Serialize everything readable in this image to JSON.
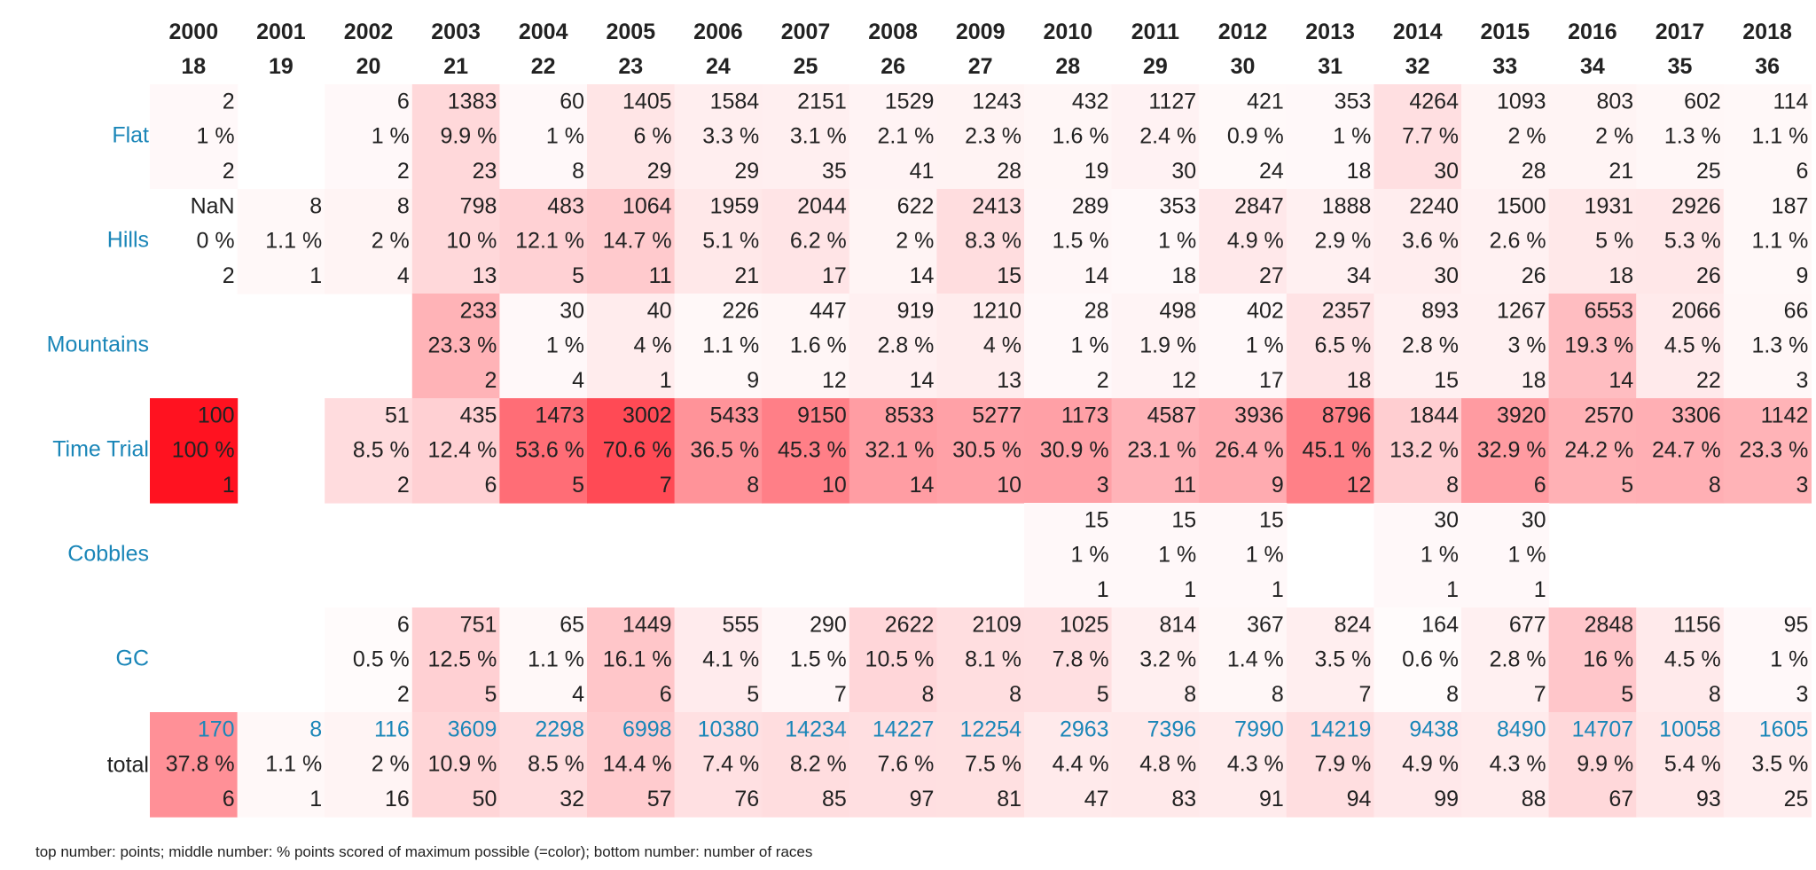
{
  "chart_data": {
    "type": "heatmap",
    "title": "",
    "footnote": "top number: points; middle number: % points scored of maximum possible (=color); bottom number: number of races",
    "columns": [
      {
        "year": "2000",
        "age": "18"
      },
      {
        "year": "2001",
        "age": "19"
      },
      {
        "year": "2002",
        "age": "20"
      },
      {
        "year": "2003",
        "age": "21"
      },
      {
        "year": "2004",
        "age": "22"
      },
      {
        "year": "2005",
        "age": "23"
      },
      {
        "year": "2006",
        "age": "24"
      },
      {
        "year": "2007",
        "age": "25"
      },
      {
        "year": "2008",
        "age": "26"
      },
      {
        "year": "2009",
        "age": "27"
      },
      {
        "year": "2010",
        "age": "28"
      },
      {
        "year": "2011",
        "age": "29"
      },
      {
        "year": "2012",
        "age": "30"
      },
      {
        "year": "2013",
        "age": "31"
      },
      {
        "year": "2014",
        "age": "32"
      },
      {
        "year": "2015",
        "age": "33"
      },
      {
        "year": "2016",
        "age": "34"
      },
      {
        "year": "2017",
        "age": "35"
      },
      {
        "year": "2018",
        "age": "36"
      }
    ],
    "rows": [
      {
        "label": "Flat",
        "points": [
          "2",
          "",
          "6",
          "1383",
          "60",
          "1405",
          "1584",
          "2151",
          "1529",
          "1243",
          "432",
          "1127",
          "421",
          "353",
          "4264",
          "1093",
          "803",
          "602",
          "114"
        ],
        "pct": [
          "1 %",
          "",
          "1 %",
          "9.9 %",
          "1 %",
          "6 %",
          "3.3 %",
          "3.1 %",
          "2.1 %",
          "2.3 %",
          "1.6 %",
          "2.4 %",
          "0.9 %",
          "1 %",
          "7.7 %",
          "2 %",
          "2 %",
          "1.3 %",
          "1.1 %"
        ],
        "races": [
          "2",
          "",
          "2",
          "23",
          "8",
          "29",
          "29",
          "35",
          "41",
          "28",
          "19",
          "30",
          "24",
          "18",
          "30",
          "28",
          "21",
          "25",
          "6"
        ],
        "values": [
          1,
          null,
          1,
          9.9,
          1,
          6,
          3.3,
          3.1,
          2.1,
          2.3,
          1.6,
          2.4,
          0.9,
          1,
          7.7,
          2,
          2,
          1.3,
          1.1
        ]
      },
      {
        "label": "Hills",
        "points": [
          "NaN",
          "8",
          "8",
          "798",
          "483",
          "1064",
          "1959",
          "2044",
          "622",
          "2413",
          "289",
          "353",
          "2847",
          "1888",
          "2240",
          "1500",
          "1931",
          "2926",
          "187"
        ],
        "pct": [
          "0 %",
          "1.1 %",
          "2 %",
          "10 %",
          "12.1 %",
          "14.7 %",
          "5.1 %",
          "6.2 %",
          "2 %",
          "8.3 %",
          "1.5 %",
          "1 %",
          "4.9 %",
          "2.9 %",
          "3.6 %",
          "2.6 %",
          "5 %",
          "5.3 %",
          "1.1 %"
        ],
        "races": [
          "2",
          "1",
          "4",
          "13",
          "5",
          "11",
          "21",
          "17",
          "14",
          "15",
          "14",
          "18",
          "27",
          "34",
          "30",
          "26",
          "18",
          "26",
          "9"
        ],
        "values": [
          0,
          1.1,
          2,
          10,
          12.1,
          14.7,
          5.1,
          6.2,
          2,
          8.3,
          1.5,
          1,
          4.9,
          2.9,
          3.6,
          2.6,
          5,
          5.3,
          1.1
        ]
      },
      {
        "label": "Mountains",
        "points": [
          "",
          "",
          "",
          "233",
          "30",
          "40",
          "226",
          "447",
          "919",
          "1210",
          "28",
          "498",
          "402",
          "2357",
          "893",
          "1267",
          "6553",
          "2066",
          "66"
        ],
        "pct": [
          "",
          "",
          "",
          "23.3 %",
          "1 %",
          "4 %",
          "1.1 %",
          "1.6 %",
          "2.8 %",
          "4 %",
          "1 %",
          "1.9 %",
          "1 %",
          "6.5 %",
          "2.8 %",
          "3 %",
          "19.3 %",
          "4.5 %",
          "1.3 %"
        ],
        "races": [
          "",
          "",
          "",
          "2",
          "4",
          "1",
          "9",
          "12",
          "14",
          "13",
          "2",
          "12",
          "17",
          "18",
          "15",
          "18",
          "14",
          "22",
          "3"
        ],
        "values": [
          null,
          null,
          null,
          23.3,
          1,
          4,
          1.1,
          1.6,
          2.8,
          4,
          1,
          1.9,
          1,
          6.5,
          2.8,
          3,
          19.3,
          4.5,
          1.3
        ]
      },
      {
        "label": "Time Trial",
        "points": [
          "100",
          "",
          "51",
          "435",
          "1473",
          "3002",
          "5433",
          "9150",
          "8533",
          "5277",
          "1173",
          "4587",
          "3936",
          "8796",
          "1844",
          "3920",
          "2570",
          "3306",
          "1142"
        ],
        "pct": [
          "100 %",
          "",
          "8.5 %",
          "12.4 %",
          "53.6 %",
          "70.6 %",
          "36.5 %",
          "45.3 %",
          "32.1 %",
          "30.5 %",
          "30.9 %",
          "23.1 %",
          "26.4 %",
          "45.1 %",
          "13.2 %",
          "32.9 %",
          "24.2 %",
          "24.7 %",
          "23.3 %"
        ],
        "races": [
          "1",
          "",
          "2",
          "6",
          "5",
          "7",
          "8",
          "10",
          "14",
          "10",
          "3",
          "11",
          "9",
          "12",
          "8",
          "6",
          "5",
          "8",
          "3"
        ],
        "values": [
          100,
          null,
          8.5,
          12.4,
          53.6,
          70.6,
          36.5,
          45.3,
          32.1,
          30.5,
          30.9,
          23.1,
          26.4,
          45.1,
          13.2,
          32.9,
          24.2,
          24.7,
          23.3
        ]
      },
      {
        "label": "Cobbles",
        "points": [
          "",
          "",
          "",
          "",
          "",
          "",
          "",
          "",
          "",
          "",
          "15",
          "15",
          "15",
          "",
          "30",
          "30",
          "",
          "",
          ""
        ],
        "pct": [
          "",
          "",
          "",
          "",
          "",
          "",
          "",
          "",
          "",
          "",
          "1 %",
          "1 %",
          "1 %",
          "",
          "1 %",
          "1 %",
          "",
          "",
          ""
        ],
        "races": [
          "",
          "",
          "",
          "",
          "",
          "",
          "",
          "",
          "",
          "",
          "1",
          "1",
          "1",
          "",
          "1",
          "1",
          "",
          "",
          ""
        ],
        "values": [
          null,
          null,
          null,
          null,
          null,
          null,
          null,
          null,
          null,
          null,
          1,
          1,
          1,
          null,
          1,
          1,
          null,
          null,
          null
        ]
      },
      {
        "label": "GC",
        "points": [
          "",
          "",
          "6",
          "751",
          "65",
          "1449",
          "555",
          "290",
          "2622",
          "2109",
          "1025",
          "814",
          "367",
          "824",
          "164",
          "677",
          "2848",
          "1156",
          "95"
        ],
        "pct": [
          "",
          "",
          "0.5 %",
          "12.5 %",
          "1.1 %",
          "16.1 %",
          "4.1 %",
          "1.5 %",
          "10.5 %",
          "8.1 %",
          "7.8 %",
          "3.2 %",
          "1.4 %",
          "3.5 %",
          "0.6 %",
          "2.8 %",
          "16 %",
          "4.5 %",
          "1 %"
        ],
        "races": [
          "",
          "",
          "2",
          "5",
          "4",
          "6",
          "5",
          "7",
          "8",
          "8",
          "5",
          "8",
          "8",
          "7",
          "8",
          "7",
          "5",
          "8",
          "3"
        ],
        "values": [
          null,
          null,
          0.5,
          12.5,
          1.1,
          16.1,
          4.1,
          1.5,
          10.5,
          8.1,
          7.8,
          3.2,
          1.4,
          3.5,
          0.6,
          2.8,
          16,
          4.5,
          1
        ]
      },
      {
        "label": "total",
        "points": [
          "170",
          "8",
          "116",
          "3609",
          "2298",
          "6998",
          "10380",
          "14234",
          "14227",
          "12254",
          "2963",
          "7396",
          "7990",
          "14219",
          "9438",
          "8490",
          "14707",
          "10058",
          "1605"
        ],
        "pct": [
          "37.8 %",
          "1.1 %",
          "2 %",
          "10.9 %",
          "8.5 %",
          "14.4 %",
          "7.4 %",
          "8.2 %",
          "7.6 %",
          "7.5 %",
          "4.4 %",
          "4.8 %",
          "4.3 %",
          "7.9 %",
          "4.9 %",
          "4.3 %",
          "9.9 %",
          "5.4 %",
          "3.5 %"
        ],
        "races": [
          "6",
          "1",
          "16",
          "50",
          "32",
          "57",
          "76",
          "85",
          "97",
          "81",
          "47",
          "83",
          "91",
          "94",
          "99",
          "88",
          "67",
          "93",
          "25"
        ],
        "values": [
          37.8,
          1.1,
          2,
          10.9,
          8.5,
          14.4,
          7.4,
          8.2,
          7.6,
          7.5,
          4.4,
          4.8,
          4.3,
          7.9,
          4.9,
          4.3,
          9.9,
          5.4,
          3.5
        ]
      }
    ],
    "color_range": [
      0,
      100
    ],
    "colors": {
      "low": "#ffffff",
      "high": "#ff1220",
      "row_label": "#1a86b8",
      "total_points": "#1a86b8",
      "text": "#222222"
    }
  }
}
